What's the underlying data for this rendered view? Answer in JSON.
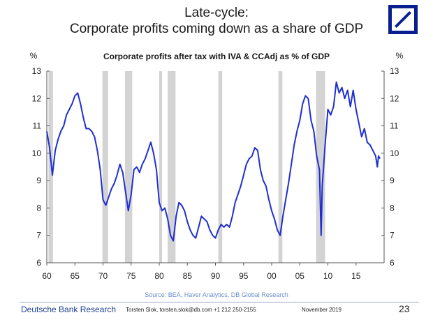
{
  "header": {
    "title_line1": "Late-cycle:",
    "title_line2": "Corporate profits coming down as a share of GDP",
    "logo_icon": "deutsche-bank-slash-logo"
  },
  "source": "Source:  BEA, Haver Analytics, DB Global  Research",
  "footer": {
    "brand": "Deutsche Bank Research",
    "contact": "Torsten Slok, torsten.slok@db.com  +1 212 250-2155",
    "date": "November 2019",
    "page": "23"
  },
  "colors": {
    "line": "#1f2fd1",
    "recession": "#d3d3d3",
    "logo": "#0a1f8f",
    "brand_text": "#1b3f94",
    "source_text": "#6b8fc9"
  },
  "chart_data": {
    "type": "line",
    "title": "Corporate profits after tax with IVA & CCAdj as  % of GDP",
    "y_unit_left": "%",
    "y_unit_right": "%",
    "xlim": [
      1960,
      2020
    ],
    "ylim": [
      6,
      13
    ],
    "yticks": [
      6,
      7,
      8,
      9,
      10,
      11,
      12,
      13
    ],
    "xticks": [
      {
        "value": 1960,
        "label": "60"
      },
      {
        "value": 1965,
        "label": "65"
      },
      {
        "value": 1970,
        "label": "70"
      },
      {
        "value": 1975,
        "label": "75"
      },
      {
        "value": 1980,
        "label": "80"
      },
      {
        "value": 1985,
        "label": "85"
      },
      {
        "value": 1990,
        "label": "90"
      },
      {
        "value": 1995,
        "label": "95"
      },
      {
        "value": 2000,
        "label": "00"
      },
      {
        "value": 2005,
        "label": "05"
      },
      {
        "value": 2010,
        "label": "10"
      },
      {
        "value": 2015,
        "label": "15"
      }
    ],
    "recessions": [
      [
        1960.3,
        1961.1
      ],
      [
        1969.9,
        1970.9
      ],
      [
        1973.9,
        1975.2
      ],
      [
        1980.0,
        1980.5
      ],
      [
        1981.5,
        1982.9
      ],
      [
        1990.5,
        1991.2
      ],
      [
        2001.2,
        2001.9
      ],
      [
        2007.9,
        2009.5
      ]
    ],
    "series": [
      {
        "points": [
          [
            1960.0,
            10.8
          ],
          [
            1960.5,
            10.2
          ],
          [
            1961.0,
            9.2
          ],
          [
            1961.5,
            10.1
          ],
          [
            1962.0,
            10.5
          ],
          [
            1962.5,
            10.8
          ],
          [
            1963.0,
            11.0
          ],
          [
            1963.5,
            11.4
          ],
          [
            1964.0,
            11.6
          ],
          [
            1964.5,
            11.8
          ],
          [
            1965.0,
            12.1
          ],
          [
            1965.5,
            12.2
          ],
          [
            1966.0,
            11.8
          ],
          [
            1966.5,
            11.3
          ],
          [
            1967.0,
            10.9
          ],
          [
            1967.5,
            10.9
          ],
          [
            1968.0,
            10.8
          ],
          [
            1968.5,
            10.6
          ],
          [
            1969.0,
            10.1
          ],
          [
            1969.5,
            9.4
          ],
          [
            1970.0,
            8.3
          ],
          [
            1970.5,
            8.1
          ],
          [
            1971.0,
            8.4
          ],
          [
            1971.5,
            8.7
          ],
          [
            1972.0,
            8.9
          ],
          [
            1972.5,
            9.2
          ],
          [
            1973.0,
            9.6
          ],
          [
            1973.5,
            9.3
          ],
          [
            1974.0,
            8.6
          ],
          [
            1974.5,
            7.9
          ],
          [
            1975.0,
            8.5
          ],
          [
            1975.5,
            9.4
          ],
          [
            1976.0,
            9.5
          ],
          [
            1976.5,
            9.3
          ],
          [
            1977.0,
            9.6
          ],
          [
            1977.5,
            9.8
          ],
          [
            1978.0,
            10.1
          ],
          [
            1978.5,
            10.4
          ],
          [
            1979.0,
            10.0
          ],
          [
            1979.5,
            9.4
          ],
          [
            1980.0,
            8.2
          ],
          [
            1980.5,
            7.9
          ],
          [
            1981.0,
            8.0
          ],
          [
            1981.5,
            7.6
          ],
          [
            1982.0,
            7.0
          ],
          [
            1982.5,
            6.8
          ],
          [
            1983.0,
            7.7
          ],
          [
            1983.5,
            8.2
          ],
          [
            1984.0,
            8.1
          ],
          [
            1984.5,
            7.9
          ],
          [
            1985.0,
            7.5
          ],
          [
            1985.5,
            7.2
          ],
          [
            1986.0,
            7.0
          ],
          [
            1986.5,
            6.9
          ],
          [
            1987.0,
            7.3
          ],
          [
            1987.5,
            7.7
          ],
          [
            1988.0,
            7.6
          ],
          [
            1988.5,
            7.5
          ],
          [
            1989.0,
            7.2
          ],
          [
            1989.5,
            7.0
          ],
          [
            1990.0,
            6.9
          ],
          [
            1990.5,
            7.2
          ],
          [
            1991.0,
            7.4
          ],
          [
            1991.5,
            7.3
          ],
          [
            1992.0,
            7.4
          ],
          [
            1992.5,
            7.3
          ],
          [
            1993.0,
            7.7
          ],
          [
            1993.5,
            8.2
          ],
          [
            1994.0,
            8.5
          ],
          [
            1994.5,
            8.8
          ],
          [
            1995.0,
            9.2
          ],
          [
            1995.5,
            9.6
          ],
          [
            1996.0,
            9.8
          ],
          [
            1996.5,
            9.9
          ],
          [
            1997.0,
            10.2
          ],
          [
            1997.5,
            10.1
          ],
          [
            1998.0,
            9.4
          ],
          [
            1998.5,
            9.0
          ],
          [
            1999.0,
            8.8
          ],
          [
            1999.5,
            8.3
          ],
          [
            2000.0,
            7.9
          ],
          [
            2000.5,
            7.6
          ],
          [
            2001.0,
            7.2
          ],
          [
            2001.5,
            7.0
          ],
          [
            2002.0,
            7.7
          ],
          [
            2002.5,
            8.3
          ],
          [
            2003.0,
            8.9
          ],
          [
            2003.5,
            9.6
          ],
          [
            2004.0,
            10.3
          ],
          [
            2004.5,
            10.8
          ],
          [
            2005.0,
            11.2
          ],
          [
            2005.5,
            11.8
          ],
          [
            2006.0,
            12.1
          ],
          [
            2006.5,
            12.0
          ],
          [
            2007.0,
            11.2
          ],
          [
            2007.5,
            10.8
          ],
          [
            2008.0,
            9.9
          ],
          [
            2008.5,
            9.4
          ],
          [
            2008.8,
            7.0
          ],
          [
            2009.0,
            8.8
          ],
          [
            2009.5,
            10.3
          ],
          [
            2010.0,
            11.6
          ],
          [
            2010.5,
            11.4
          ],
          [
            2011.0,
            11.7
          ],
          [
            2011.5,
            12.6
          ],
          [
            2012.0,
            12.2
          ],
          [
            2012.5,
            12.4
          ],
          [
            2013.0,
            12.0
          ],
          [
            2013.5,
            12.3
          ],
          [
            2014.0,
            11.7
          ],
          [
            2014.5,
            12.3
          ],
          [
            2015.0,
            11.6
          ],
          [
            2015.5,
            11.1
          ],
          [
            2016.0,
            10.6
          ],
          [
            2016.5,
            10.9
          ],
          [
            2017.0,
            10.4
          ],
          [
            2017.5,
            10.3
          ],
          [
            2018.0,
            10.1
          ],
          [
            2018.5,
            9.9
          ],
          [
            2018.8,
            9.5
          ],
          [
            2019.0,
            9.9
          ],
          [
            2019.25,
            9.8
          ]
        ]
      }
    ]
  }
}
